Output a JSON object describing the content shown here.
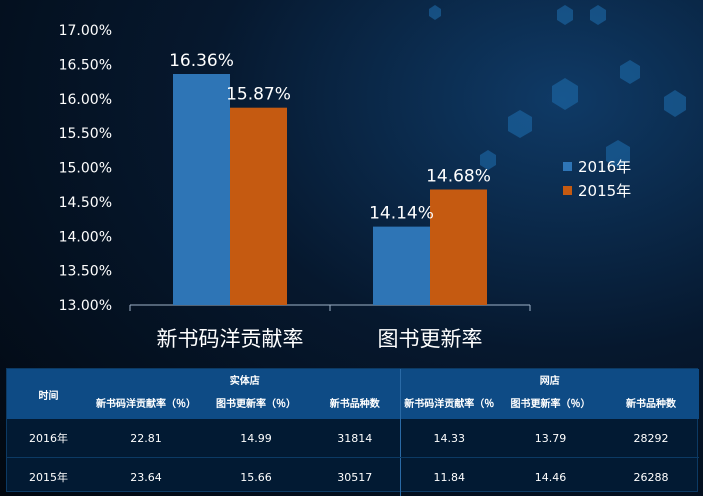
{
  "chart_data": {
    "type": "bar",
    "categories": [
      "新书码洋贡献率",
      "图书更新率"
    ],
    "series": [
      {
        "name": "2016年",
        "values": [
          16.36,
          14.14
        ],
        "labels": [
          "16.36%",
          "14.14%"
        ],
        "color": "#2e75b6"
      },
      {
        "name": "2015年",
        "values": [
          15.87,
          14.68
        ],
        "labels": [
          "15.87%",
          "14.68%"
        ],
        "color": "#c55a11"
      }
    ],
    "ylim": [
      13.0,
      17.0
    ],
    "yticks": [
      "13.00%",
      "13.50%",
      "14.00%",
      "14.50%",
      "15.00%",
      "15.50%",
      "16.00%",
      "16.50%",
      "17.00%"
    ],
    "legend_position": "right",
    "grid": false
  },
  "table": {
    "header_time": "时间",
    "group_store": "实体店",
    "group_online": "网店",
    "cols_store": [
      "新书码洋贡献率（％）",
      "图书更新率（％）",
      "新书品种数"
    ],
    "cols_online": [
      "新书码洋贡献率（％",
      "图书更新率（％）",
      "新书品种数"
    ],
    "rows": [
      {
        "year": "2016年",
        "cells": [
          "22.81",
          "14.99",
          "31814",
          "14.33",
          "13.79",
          "28292"
        ]
      },
      {
        "year": "2015年",
        "cells": [
          "23.64",
          "15.66",
          "30517",
          "11.84",
          "14.46",
          "26288"
        ]
      }
    ]
  },
  "colors": {
    "bar_2016": "#2e75b6",
    "bar_2015": "#c55a11",
    "header_bg": "#0e4b85"
  }
}
